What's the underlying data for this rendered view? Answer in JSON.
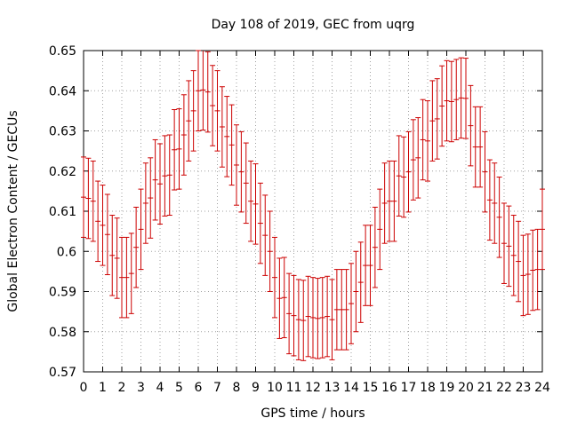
{
  "chart_data": {
    "type": "line",
    "title": "Day 108 of 2019, GEC from uqrg",
    "xlabel": "GPS time / hours",
    "ylabel": "Global Electron Content / GECUs",
    "xlim": [
      0,
      24
    ],
    "ylim": [
      0.57,
      0.65
    ],
    "x_ticks": [
      0,
      1,
      2,
      3,
      4,
      5,
      6,
      7,
      8,
      9,
      10,
      11,
      12,
      13,
      14,
      15,
      16,
      17,
      18,
      19,
      20,
      21,
      22,
      23,
      24
    ],
    "y_ticks": [
      0.57,
      0.58,
      0.59,
      0.6,
      0.61,
      0.62,
      0.63,
      0.64,
      0.65
    ],
    "x_tick_labels": [
      "0",
      "1",
      "2",
      "3",
      "4",
      "5",
      "6",
      "7",
      "8",
      "9",
      "10",
      "11",
      "12",
      "13",
      "14",
      "15",
      "16",
      "17",
      "18",
      "19",
      "20",
      "21",
      "22",
      "23",
      "24"
    ],
    "y_tick_labels": [
      "0.57",
      "0.58",
      "0.59",
      "0.6",
      "0.61",
      "0.62",
      "0.63",
      "0.64",
      "0.65"
    ],
    "grid": true,
    "series": [
      {
        "name": "GEC",
        "color": "#cc0000",
        "style": "errorbars",
        "error": 0.01,
        "x": [
          0,
          0.25,
          0.5,
          0.75,
          1,
          1.25,
          1.5,
          1.75,
          2,
          2.25,
          2.5,
          2.75,
          3,
          3.25,
          3.5,
          3.75,
          4,
          4.25,
          4.5,
          4.75,
          5,
          5.25,
          5.5,
          5.75,
          6,
          6.25,
          6.5,
          6.75,
          7,
          7.25,
          7.5,
          7.75,
          8,
          8.25,
          8.5,
          8.75,
          9,
          9.25,
          9.5,
          9.75,
          10,
          10.25,
          10.5,
          10.75,
          11,
          11.25,
          11.5,
          11.75,
          12,
          12.25,
          12.5,
          12.75,
          13,
          13.25,
          13.5,
          13.75,
          14,
          14.25,
          14.5,
          14.75,
          15,
          15.25,
          15.5,
          15.75,
          16,
          16.25,
          16.5,
          16.75,
          17,
          17.25,
          17.5,
          17.75,
          18,
          18.25,
          18.5,
          18.75,
          19,
          19.25,
          19.5,
          19.75,
          20,
          20.25,
          20.5,
          20.75,
          21,
          21.25,
          21.5,
          21.75,
          22,
          22.25,
          22.5,
          22.75,
          23,
          23.25,
          23.5,
          23.75,
          24
        ],
        "values": [
          0.6135,
          0.6132,
          0.6125,
          0.6075,
          0.6065,
          0.6042,
          0.599,
          0.5983,
          0.5935,
          0.5935,
          0.5945,
          0.601,
          0.6055,
          0.612,
          0.6133,
          0.6178,
          0.6168,
          0.6188,
          0.619,
          0.6253,
          0.6255,
          0.629,
          0.6325,
          0.635,
          0.64,
          0.6402,
          0.6397,
          0.6363,
          0.635,
          0.631,
          0.6286,
          0.6265,
          0.6215,
          0.6198,
          0.617,
          0.6125,
          0.6118,
          0.607,
          0.604,
          0.6,
          0.5935,
          0.5883,
          0.5885,
          0.5845,
          0.584,
          0.583,
          0.5828,
          0.5838,
          0.5835,
          0.5833,
          0.5835,
          0.5838,
          0.583,
          0.5855,
          0.5855,
          0.5855,
          0.587,
          0.59,
          0.5923,
          0.5965,
          0.5965,
          0.601,
          0.6055,
          0.612,
          0.6125,
          0.6125,
          0.6188,
          0.6185,
          0.6198,
          0.6228,
          0.6233,
          0.6278,
          0.6275,
          0.6325,
          0.633,
          0.6362,
          0.6375,
          0.6373,
          0.6378,
          0.6382,
          0.6381,
          0.6313,
          0.626,
          0.626,
          0.6198,
          0.6128,
          0.612,
          0.6085,
          0.602,
          0.6013,
          0.599,
          0.5975,
          0.594,
          0.5943,
          0.5953,
          0.5955,
          0.6055
        ]
      }
    ]
  }
}
